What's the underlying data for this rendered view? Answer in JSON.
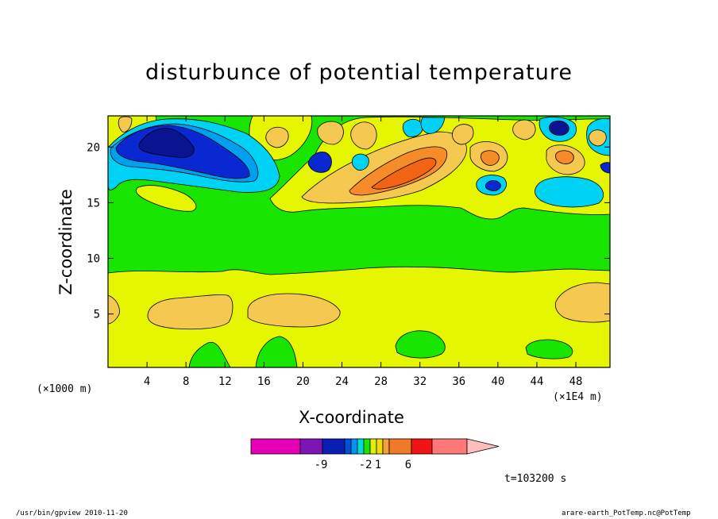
{
  "chart_data": {
    "type": "heatmap",
    "title": "disturbunce of potential temperature",
    "xlabel": "X-coordinate",
    "ylabel": "Z-coordinate",
    "x_unit_left": "(×1000 m)",
    "x_unit_right": "(×1E4 m)",
    "xlim": [
      0,
      51.5
    ],
    "ylim": [
      0.2,
      22.8
    ],
    "xticks": [
      4,
      8,
      12,
      16,
      20,
      24,
      28,
      32,
      36,
      40,
      44,
      48
    ],
    "yticks": [
      5,
      10,
      15,
      20
    ],
    "time_label": "t=103200 s",
    "colorbar": {
      "orientation": "horizontal",
      "tick_labels": [
        "-9",
        "-2",
        "1",
        "6"
      ],
      "tick_values": [
        -9,
        -2,
        1,
        6
      ],
      "colors": [
        "#e600b4",
        "#7d14b4",
        "#0a1eb4",
        "#0050dc",
        "#0096f0",
        "#00dcdc",
        "#19e600",
        "#dcf000",
        "#f0dc00",
        "#f0a03c",
        "#f07828",
        "#f01414",
        "#ff7878",
        "#ffbebe"
      ]
    },
    "colors": {
      "green": "#19e600",
      "yellow": "#e6f500",
      "light_orange": "#f5c850",
      "orange": "#f58c28",
      "red_orange": "#f06414",
      "cyan": "#00d2f5",
      "light_blue": "#00a0f0",
      "blue": "#0a28d2",
      "dark_blue": "#0a1490"
    }
  },
  "footer": {
    "left": "/usr/bin/gpview  2010-11-20",
    "right": "arare-earth_PotTemp.nc@PotTemp"
  }
}
